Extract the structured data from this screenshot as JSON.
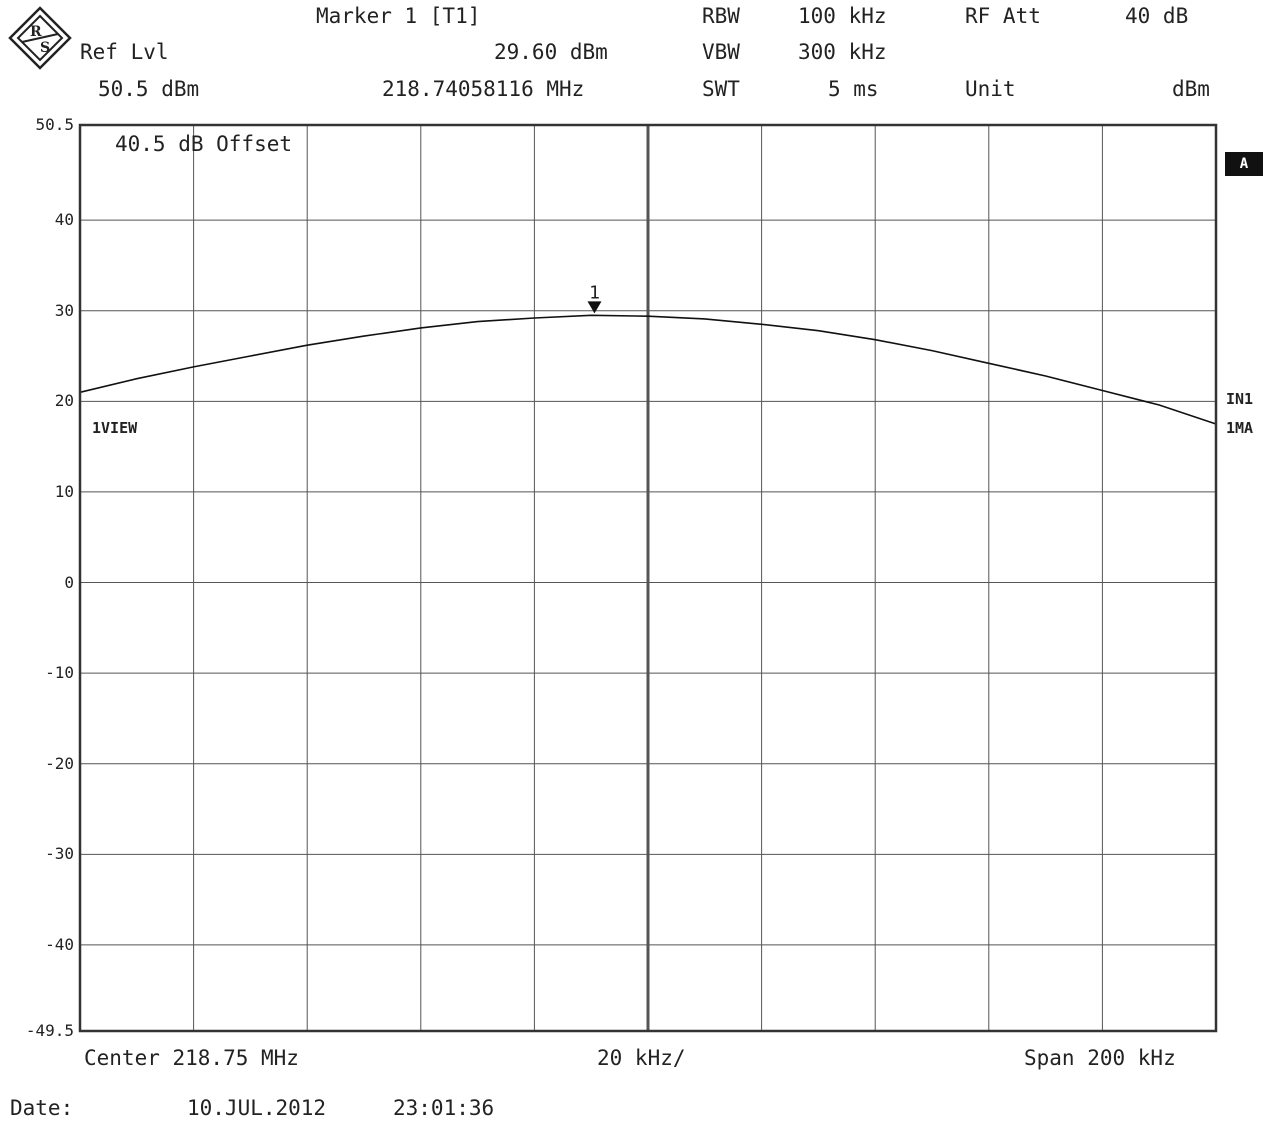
{
  "header": {
    "ref_lvl_label": "Ref Lvl",
    "ref_lvl_value": "50.5 dBm",
    "marker_label": "Marker 1 [T1]",
    "marker_level": "29.60 dBm",
    "marker_freq": "218.74058116 MHz",
    "rbw_label": "RBW",
    "rbw_value": "100 kHz",
    "vbw_label": "VBW",
    "vbw_value": "300 kHz",
    "swt_label": "SWT",
    "swt_value": "5 ms",
    "rfatt_label": "RF Att",
    "rfatt_value": "40 dB",
    "unit_label": "Unit",
    "unit_value": "dBm"
  },
  "annotations": {
    "offset": "40.5 dB Offset",
    "view": "1VIEW",
    "badge_a": "A",
    "in1": "IN1",
    "ma": "1MA",
    "marker_num": "1"
  },
  "footer": {
    "center": "Center 218.75 MHz",
    "div": "20 kHz/",
    "span": "Span 200 kHz",
    "date_label": "Date:",
    "date": "10.JUL.2012",
    "time": "23:01:36"
  },
  "chart_data": {
    "type": "line",
    "ylabel": "",
    "xlabel": "",
    "y_ticks": [
      "50.5",
      "40",
      "30",
      "20",
      "10",
      "0",
      "-10",
      "-20",
      "-30",
      "-40",
      "-49.5"
    ],
    "ylim": [
      -49.5,
      50.5
    ],
    "xlim": [
      218.65,
      218.85
    ],
    "grid": true,
    "marker": {
      "x": 218.74058,
      "y": 29.6
    },
    "series": [
      {
        "x": [
          218.65,
          218.66,
          218.67,
          218.68,
          218.69,
          218.7,
          218.71,
          218.72,
          218.73,
          218.74,
          218.75,
          218.76,
          218.77,
          218.78,
          218.79,
          218.8,
          218.81,
          218.82,
          218.83,
          218.84,
          218.85
        ],
        "values": [
          21.0,
          22.5,
          23.8,
          25.0,
          26.2,
          27.2,
          28.1,
          28.8,
          29.2,
          29.5,
          29.4,
          29.1,
          28.5,
          27.8,
          26.8,
          25.6,
          24.2,
          22.8,
          21.2,
          19.6,
          17.5
        ]
      }
    ]
  }
}
